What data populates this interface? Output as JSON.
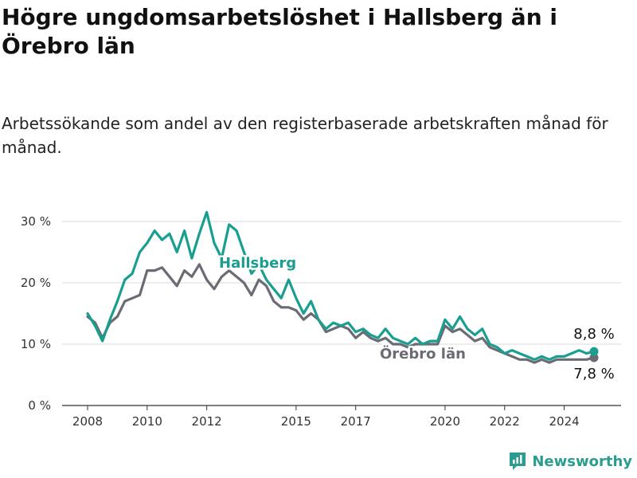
{
  "title": "Högre ungdomsarbetslöshet i Hallsberg än i Örebro län",
  "subtitle": "Arbetssökande som andel av den registerbaserade arbetskraften månad för månad.",
  "brand": {
    "name": "Newsworthy",
    "icon": "newsworthy-logo-icon"
  },
  "colors": {
    "hallsberg": "#1a9e8f",
    "orebro": "#6b6b75",
    "grid": "#d9d9d9",
    "axis": "#333333"
  },
  "chart_data": {
    "type": "line",
    "title": "Högre ungdomsarbetslöshet i Hallsberg än i Örebro län",
    "subtitle": "Arbetssökande som andel av den registerbaserade arbetskraften månad för månad.",
    "xlabel": "",
    "ylabel": "",
    "ylim": [
      0,
      30
    ],
    "y_ticks": [
      0,
      10,
      20,
      30
    ],
    "y_tick_labels": [
      "0 %",
      "10 %",
      "20 %",
      "30 %"
    ],
    "x_ticks": [
      2008,
      2010,
      2012,
      2015,
      2017,
      2020,
      2022,
      2024
    ],
    "x_tick_labels": [
      "2008",
      "2010",
      "2012",
      "2015",
      "2017",
      "2020",
      "2022",
      "2024"
    ],
    "xlim": [
      2008.0,
      2025.0
    ],
    "grid": true,
    "legend": "inline labels",
    "series": [
      {
        "name": "Hallsberg",
        "label": "Hallsberg",
        "end_label": "8,8 %",
        "x": [
          2008.0,
          2008.25,
          2008.5,
          2008.75,
          2009.0,
          2009.25,
          2009.5,
          2009.75,
          2010.0,
          2010.25,
          2010.5,
          2010.75,
          2011.0,
          2011.25,
          2011.5,
          2011.75,
          2012.0,
          2012.25,
          2012.5,
          2012.75,
          2013.0,
          2013.25,
          2013.5,
          2013.75,
          2014.0,
          2014.25,
          2014.5,
          2014.75,
          2015.0,
          2015.25,
          2015.5,
          2015.75,
          2016.0,
          2016.25,
          2016.5,
          2016.75,
          2017.0,
          2017.25,
          2017.5,
          2017.75,
          2018.0,
          2018.25,
          2018.5,
          2018.75,
          2019.0,
          2019.25,
          2019.5,
          2019.75,
          2020.0,
          2020.25,
          2020.5,
          2020.75,
          2021.0,
          2021.25,
          2021.5,
          2021.75,
          2022.0,
          2022.25,
          2022.5,
          2022.75,
          2023.0,
          2023.25,
          2023.5,
          2023.75,
          2024.0,
          2024.25,
          2024.5,
          2024.75,
          2025.0
        ],
        "values": [
          15,
          13,
          10.5,
          14,
          17,
          20.5,
          21.5,
          25,
          26.5,
          28.5,
          27,
          28,
          25,
          28.5,
          24,
          28,
          31.5,
          26.5,
          24,
          29.5,
          28.5,
          25,
          21.5,
          23,
          20.5,
          19,
          17.5,
          20.5,
          17.5,
          15,
          17,
          14,
          12.5,
          13.5,
          13,
          13.5,
          12,
          12.5,
          11.5,
          11,
          12.5,
          11,
          10.5,
          10,
          11,
          10,
          10.5,
          10.5,
          14,
          12.5,
          14.5,
          12.5,
          11.5,
          12.5,
          10,
          9.5,
          8.5,
          9,
          8.5,
          8,
          7.5,
          8,
          7.5,
          8,
          8,
          8.5,
          9,
          8.5,
          8.8
        ]
      },
      {
        "name": "Örebro län",
        "label": "Örebro län",
        "end_label": "7,8 %",
        "x": [
          2008.0,
          2008.25,
          2008.5,
          2008.75,
          2009.0,
          2009.25,
          2009.5,
          2009.75,
          2010.0,
          2010.25,
          2010.5,
          2010.75,
          2011.0,
          2011.25,
          2011.5,
          2011.75,
          2012.0,
          2012.25,
          2012.5,
          2012.75,
          2013.0,
          2013.25,
          2013.5,
          2013.75,
          2014.0,
          2014.25,
          2014.5,
          2014.75,
          2015.0,
          2015.25,
          2015.5,
          2015.75,
          2016.0,
          2016.25,
          2016.5,
          2016.75,
          2017.0,
          2017.25,
          2017.5,
          2017.75,
          2018.0,
          2018.25,
          2018.5,
          2018.75,
          2019.0,
          2019.25,
          2019.5,
          2019.75,
          2020.0,
          2020.25,
          2020.5,
          2020.75,
          2021.0,
          2021.25,
          2021.5,
          2021.75,
          2022.0,
          2022.25,
          2022.5,
          2022.75,
          2023.0,
          2023.25,
          2023.5,
          2023.75,
          2024.0,
          2024.25,
          2024.5,
          2024.75,
          2025.0
        ],
        "values": [
          14.5,
          13.5,
          11,
          13.5,
          14.5,
          17,
          17.5,
          18,
          22,
          22,
          22.5,
          21,
          19.5,
          22,
          21,
          23,
          20.5,
          19,
          21,
          22,
          21,
          20,
          18,
          20.5,
          19.5,
          17,
          16,
          16,
          15.5,
          14,
          15,
          14,
          12,
          12.5,
          13,
          12.5,
          11,
          12,
          11,
          10.5,
          11,
          10,
          10,
          9.5,
          10,
          10,
          10,
          10,
          13,
          12,
          12.5,
          11.5,
          10.5,
          11,
          9.5,
          9,
          8.5,
          8,
          7.5,
          7.5,
          7,
          7.5,
          7,
          7.5,
          7.5,
          7.5,
          7.5,
          7.5,
          7.8
        ]
      }
    ]
  }
}
